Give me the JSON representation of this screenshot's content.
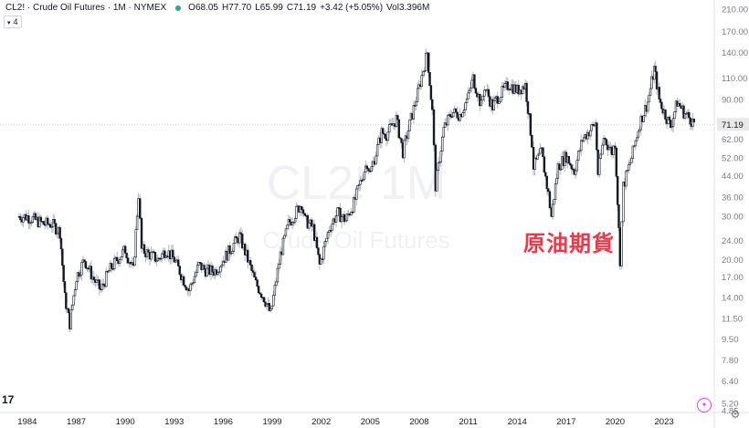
{
  "legend": {
    "symbol": "CL2! · Crude Oil Futures · 1M · NYMEX",
    "open_label": "O",
    "open": "68.05",
    "high_label": "H",
    "high": "77.70",
    "low_label": "L",
    "low": "65.99",
    "close_label": "C",
    "close": "71.19",
    "change": "+3.42 (+5.05%)",
    "volume_label": "Vol",
    "volume": "3.396M"
  },
  "indicator_toggle": {
    "count": "4"
  },
  "watermark": {
    "ticker": "CL2! 1M",
    "name": "Crude Oil Futures"
  },
  "annotation": "原油期貨",
  "last_price": "71.19",
  "colors": {
    "up": "#131722",
    "down": "#131722",
    "annotation": "#f23645",
    "price_tag": "#e8e8e8",
    "status_dot": "#26a69a"
  },
  "chart_data": {
    "type": "candlestick",
    "scale": "log",
    "ylim": [
      4.85,
      210
    ],
    "y_ticks": [
      "210.00",
      "170.00",
      "140.00",
      "110.00",
      "90.00",
      "71.19",
      "62.00",
      "52.00",
      "44.00",
      "36.00",
      "30.00",
      "24.00",
      "20.00",
      "17.00",
      "14.00",
      "11.50",
      "9.50",
      "7.80",
      "6.40",
      "5.20",
      "4.85"
    ],
    "x_ticks": [
      "1984",
      "1987",
      "1990",
      "1993",
      "1996",
      "1999",
      "2002",
      "2005",
      "2008",
      "2011",
      "2014",
      "2017",
      "2020",
      "2023"
    ],
    "series": [
      {
        "points": [
          [
            1983.5,
            30
          ],
          [
            1984.0,
            30
          ],
          [
            1984.5,
            29
          ],
          [
            1985.0,
            28
          ],
          [
            1985.5,
            28
          ],
          [
            1986.0,
            26
          ],
          [
            1986.3,
            14
          ],
          [
            1986.6,
            11
          ],
          [
            1987.0,
            17
          ],
          [
            1987.5,
            20
          ],
          [
            1988.0,
            17
          ],
          [
            1988.5,
            15
          ],
          [
            1989.0,
            18
          ],
          [
            1989.5,
            20
          ],
          [
            1990.0,
            22
          ],
          [
            1990.5,
            18
          ],
          [
            1990.8,
            37
          ],
          [
            1991.0,
            22
          ],
          [
            1991.5,
            21
          ],
          [
            1992.0,
            20
          ],
          [
            1992.5,
            22
          ],
          [
            1993.0,
            20
          ],
          [
            1993.5,
            17
          ],
          [
            1993.9,
            15
          ],
          [
            1994.5,
            19
          ],
          [
            1995.0,
            18
          ],
          [
            1995.5,
            18
          ],
          [
            1996.0,
            20
          ],
          [
            1996.8,
            24
          ],
          [
            1997.0,
            25
          ],
          [
            1997.5,
            20
          ],
          [
            1998.0,
            16
          ],
          [
            1998.5,
            14
          ],
          [
            1998.9,
            12
          ],
          [
            1999.5,
            21
          ],
          [
            2000.0,
            28
          ],
          [
            2000.8,
            34
          ],
          [
            2001.0,
            29
          ],
          [
            2001.5,
            27
          ],
          [
            2001.9,
            19
          ],
          [
            2002.5,
            27
          ],
          [
            2003.0,
            31
          ],
          [
            2003.5,
            29
          ],
          [
            2004.0,
            34
          ],
          [
            2004.8,
            50
          ],
          [
            2005.0,
            45
          ],
          [
            2005.7,
            66
          ],
          [
            2006.0,
            65
          ],
          [
            2006.6,
            75
          ],
          [
            2007.0,
            55
          ],
          [
            2007.5,
            75
          ],
          [
            2007.9,
            95
          ],
          [
            2008.5,
            140
          ],
          [
            2008.8,
            80
          ],
          [
            2009.0,
            40
          ],
          [
            2009.5,
            68
          ],
          [
            2010.0,
            80
          ],
          [
            2010.5,
            78
          ],
          [
            2011.0,
            92
          ],
          [
            2011.3,
            110
          ],
          [
            2011.8,
            85
          ],
          [
            2012.0,
            102
          ],
          [
            2012.5,
            84
          ],
          [
            2012.8,
            92
          ],
          [
            2013.0,
            95
          ],
          [
            2013.5,
            104
          ],
          [
            2014.0,
            98
          ],
          [
            2014.5,
            103
          ],
          [
            2014.9,
            60
          ],
          [
            2015.0,
            48
          ],
          [
            2015.5,
            55
          ],
          [
            2015.9,
            37
          ],
          [
            2016.1,
            30
          ],
          [
            2016.5,
            48
          ],
          [
            2017.0,
            53
          ],
          [
            2017.5,
            46
          ],
          [
            2018.0,
            62
          ],
          [
            2018.8,
            72
          ],
          [
            2018.95,
            45
          ],
          [
            2019.3,
            63
          ],
          [
            2019.8,
            55
          ],
          [
            2020.0,
            60
          ],
          [
            2020.3,
            20
          ],
          [
            2020.5,
            40
          ],
          [
            2021.0,
            52
          ],
          [
            2021.5,
            72
          ],
          [
            2022.0,
            88
          ],
          [
            2022.4,
            120
          ],
          [
            2022.7,
            90
          ],
          [
            2023.0,
            80
          ],
          [
            2023.4,
            70
          ],
          [
            2023.8,
            88
          ],
          [
            2024.2,
            80
          ],
          [
            2024.6,
            75
          ],
          [
            2024.9,
            71.19
          ]
        ]
      }
    ]
  }
}
